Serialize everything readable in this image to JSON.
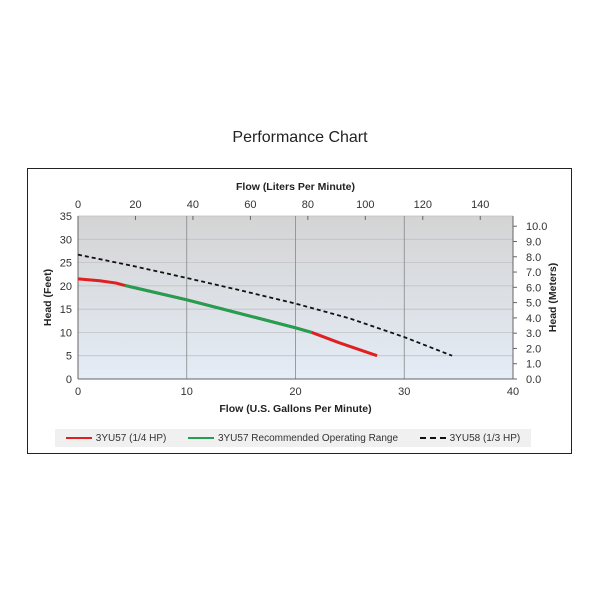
{
  "chart_data": {
    "type": "line",
    "title": "Performance Chart",
    "xlabel": "Flow (U.S. Gallons Per Minute)",
    "x2label": "Flow (Liters Per Minute)",
    "ylabel": "Head (Feet)",
    "y2label": "Head (Meters)",
    "xlim": [
      0,
      40
    ],
    "ylim": [
      0,
      35
    ],
    "x2lim": [
      0,
      151.4
    ],
    "y2lim": [
      0,
      10.67
    ],
    "xticks": [
      "0",
      "10",
      "20",
      "30",
      "40"
    ],
    "yticks": [
      "0",
      "5",
      "10",
      "15",
      "20",
      "25",
      "30",
      "35"
    ],
    "x2ticks": [
      "0",
      "20",
      "40",
      "60",
      "80",
      "100",
      "120",
      "140"
    ],
    "y2ticks": [
      "0.0",
      "1.0",
      "2.0",
      "3.0",
      "4.0",
      "5.0",
      "6.0",
      "7.0",
      "8.0",
      "9.0",
      "10.0"
    ],
    "grid": true,
    "legend_position": "bottom",
    "series": [
      {
        "name": "3YU57 (1/4 HP)",
        "color": "#e02020",
        "style": "solid",
        "x": [
          0,
          2,
          3.5,
          4.3,
          10,
          15,
          20,
          21.5,
          24,
          27.5
        ],
        "y": [
          21.5,
          21.1,
          20.6,
          20.1,
          17,
          14,
          11,
          10,
          7.8,
          5
        ]
      },
      {
        "name": "3YU57 Recommended Operating Range",
        "color": "#20a050",
        "style": "solid",
        "x": [
          4.3,
          10,
          15,
          20,
          21.5
        ],
        "y": [
          20.1,
          17,
          14,
          11,
          10
        ]
      },
      {
        "name": "3YU58 (1/3 HP)",
        "color": "#111111",
        "style": "dashed",
        "x": [
          0,
          5,
          10,
          15,
          20,
          25,
          30,
          34.4
        ],
        "y": [
          26.7,
          24.3,
          21.7,
          19,
          16.2,
          13,
          9,
          5
        ]
      }
    ]
  }
}
